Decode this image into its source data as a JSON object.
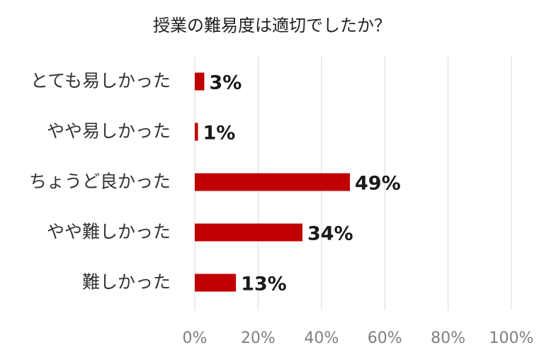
{
  "chart_data": {
    "type": "bar",
    "orientation": "horizontal",
    "title": "授業の難易度は適切でしたか？",
    "categories": [
      "とても易しかった",
      "やや易しかった",
      "ちょうど良かった",
      "やや難しかった",
      "難しかった"
    ],
    "values": [
      3,
      1,
      49,
      34,
      13
    ],
    "data_labels": [
      "3%",
      "1%",
      "49%",
      "34%",
      "13%"
    ],
    "xlim": [
      0,
      100
    ],
    "ticks": [
      0,
      20,
      40,
      60,
      80,
      100
    ],
    "tick_labels": [
      "0%",
      "20%",
      "40%",
      "60%",
      "80%",
      "100%"
    ],
    "bar_color": "#c00000",
    "grid": true,
    "legend": "none"
  }
}
